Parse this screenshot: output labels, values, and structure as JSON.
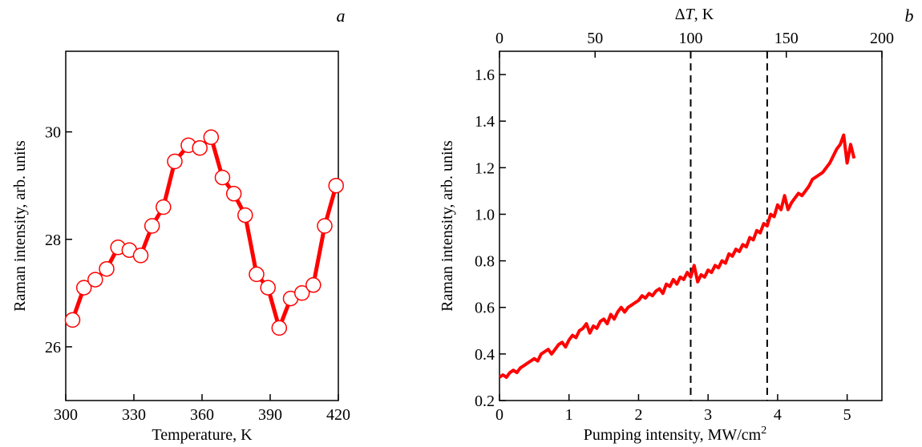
{
  "chart_data": [
    {
      "panel": "a",
      "type": "line",
      "xlabel": "Temperature, K",
      "ylabel": "Raman intensity, arb. units",
      "xlim": [
        300,
        420
      ],
      "ylim": [
        25.0,
        31.5
      ],
      "xticks": [
        300,
        330,
        360,
        390,
        420
      ],
      "yticks": [
        26,
        28,
        30
      ],
      "grid": false,
      "marker": "open-circle",
      "color": "#ff0000",
      "series": [
        {
          "x": [
            303,
            308,
            313,
            318,
            323,
            328,
            333,
            338,
            343,
            348,
            354,
            359,
            364,
            369,
            374,
            379,
            384,
            389,
            394,
            399,
            404,
            409,
            414,
            419
          ],
          "y": [
            26.5,
            27.1,
            27.25,
            27.45,
            27.85,
            27.8,
            27.7,
            28.25,
            28.6,
            29.45,
            29.75,
            29.7,
            29.9,
            29.15,
            28.85,
            28.45,
            27.35,
            27.1,
            26.35,
            26.9,
            27.0,
            27.15,
            28.25,
            29.0
          ]
        }
      ]
    },
    {
      "panel": "b",
      "type": "line",
      "xlabel": "Pumping intensity, MW/cm",
      "xlabel_sup": "2",
      "ylabel": "Raman intensity, arb. units",
      "x2label_pre": "Δ",
      "x2label_var": "T",
      "x2label_post": ", K",
      "xlim": [
        0,
        5.5
      ],
      "ylim": [
        0.2,
        1.7
      ],
      "x2lim": [
        0,
        200
      ],
      "xticks": [
        0,
        1,
        2,
        3,
        4,
        5
      ],
      "yticks": [
        0.2,
        0.4,
        0.6,
        0.8,
        1.0,
        1.2,
        1.4,
        1.6
      ],
      "x2ticks": [
        0,
        50,
        100,
        150,
        200
      ],
      "grid": false,
      "color": "#ff0000",
      "vlines_x2": [
        100,
        140
      ],
      "series": [
        {
          "x": [
            0,
            0.05,
            0.1,
            0.15,
            0.2,
            0.25,
            0.3,
            0.35,
            0.4,
            0.45,
            0.5,
            0.55,
            0.6,
            0.65,
            0.7,
            0.75,
            0.8,
            0.85,
            0.9,
            0.95,
            1.0,
            1.05,
            1.1,
            1.15,
            1.2,
            1.25,
            1.3,
            1.35,
            1.4,
            1.45,
            1.5,
            1.55,
            1.6,
            1.65,
            1.7,
            1.75,
            1.8,
            1.85,
            1.9,
            1.95,
            2.0,
            2.05,
            2.1,
            2.15,
            2.2,
            2.25,
            2.3,
            2.35,
            2.4,
            2.45,
            2.5,
            2.55,
            2.6,
            2.65,
            2.7,
            2.75,
            2.8,
            2.85,
            2.9,
            2.95,
            3.0,
            3.05,
            3.1,
            3.15,
            3.2,
            3.25,
            3.3,
            3.35,
            3.4,
            3.45,
            3.5,
            3.55,
            3.6,
            3.65,
            3.7,
            3.75,
            3.8,
            3.85,
            3.9,
            3.95,
            4.0,
            4.05,
            4.1,
            4.15,
            4.2,
            4.25,
            4.3,
            4.35,
            4.4,
            4.45,
            4.5,
            4.55,
            4.6,
            4.65,
            4.7,
            4.75,
            4.8,
            4.85,
            4.9,
            4.95,
            5.0,
            5.05,
            5.1
          ],
          "y": [
            0.3,
            0.31,
            0.3,
            0.32,
            0.33,
            0.32,
            0.34,
            0.35,
            0.36,
            0.37,
            0.38,
            0.37,
            0.4,
            0.41,
            0.42,
            0.4,
            0.42,
            0.44,
            0.45,
            0.43,
            0.46,
            0.48,
            0.47,
            0.5,
            0.51,
            0.53,
            0.49,
            0.52,
            0.51,
            0.54,
            0.55,
            0.53,
            0.57,
            0.55,
            0.58,
            0.6,
            0.58,
            0.6,
            0.61,
            0.62,
            0.63,
            0.65,
            0.64,
            0.66,
            0.65,
            0.67,
            0.68,
            0.66,
            0.7,
            0.69,
            0.72,
            0.7,
            0.73,
            0.72,
            0.75,
            0.73,
            0.78,
            0.71,
            0.74,
            0.73,
            0.76,
            0.75,
            0.78,
            0.77,
            0.8,
            0.79,
            0.83,
            0.82,
            0.85,
            0.84,
            0.87,
            0.86,
            0.9,
            0.89,
            0.93,
            0.92,
            0.96,
            0.95,
            1.0,
            0.99,
            1.04,
            1.02,
            1.08,
            1.02,
            1.05,
            1.07,
            1.09,
            1.08,
            1.1,
            1.12,
            1.15,
            1.16,
            1.17,
            1.18,
            1.2,
            1.22,
            1.25,
            1.28,
            1.3,
            1.34,
            1.22,
            1.3,
            1.24
          ]
        }
      ]
    }
  ]
}
